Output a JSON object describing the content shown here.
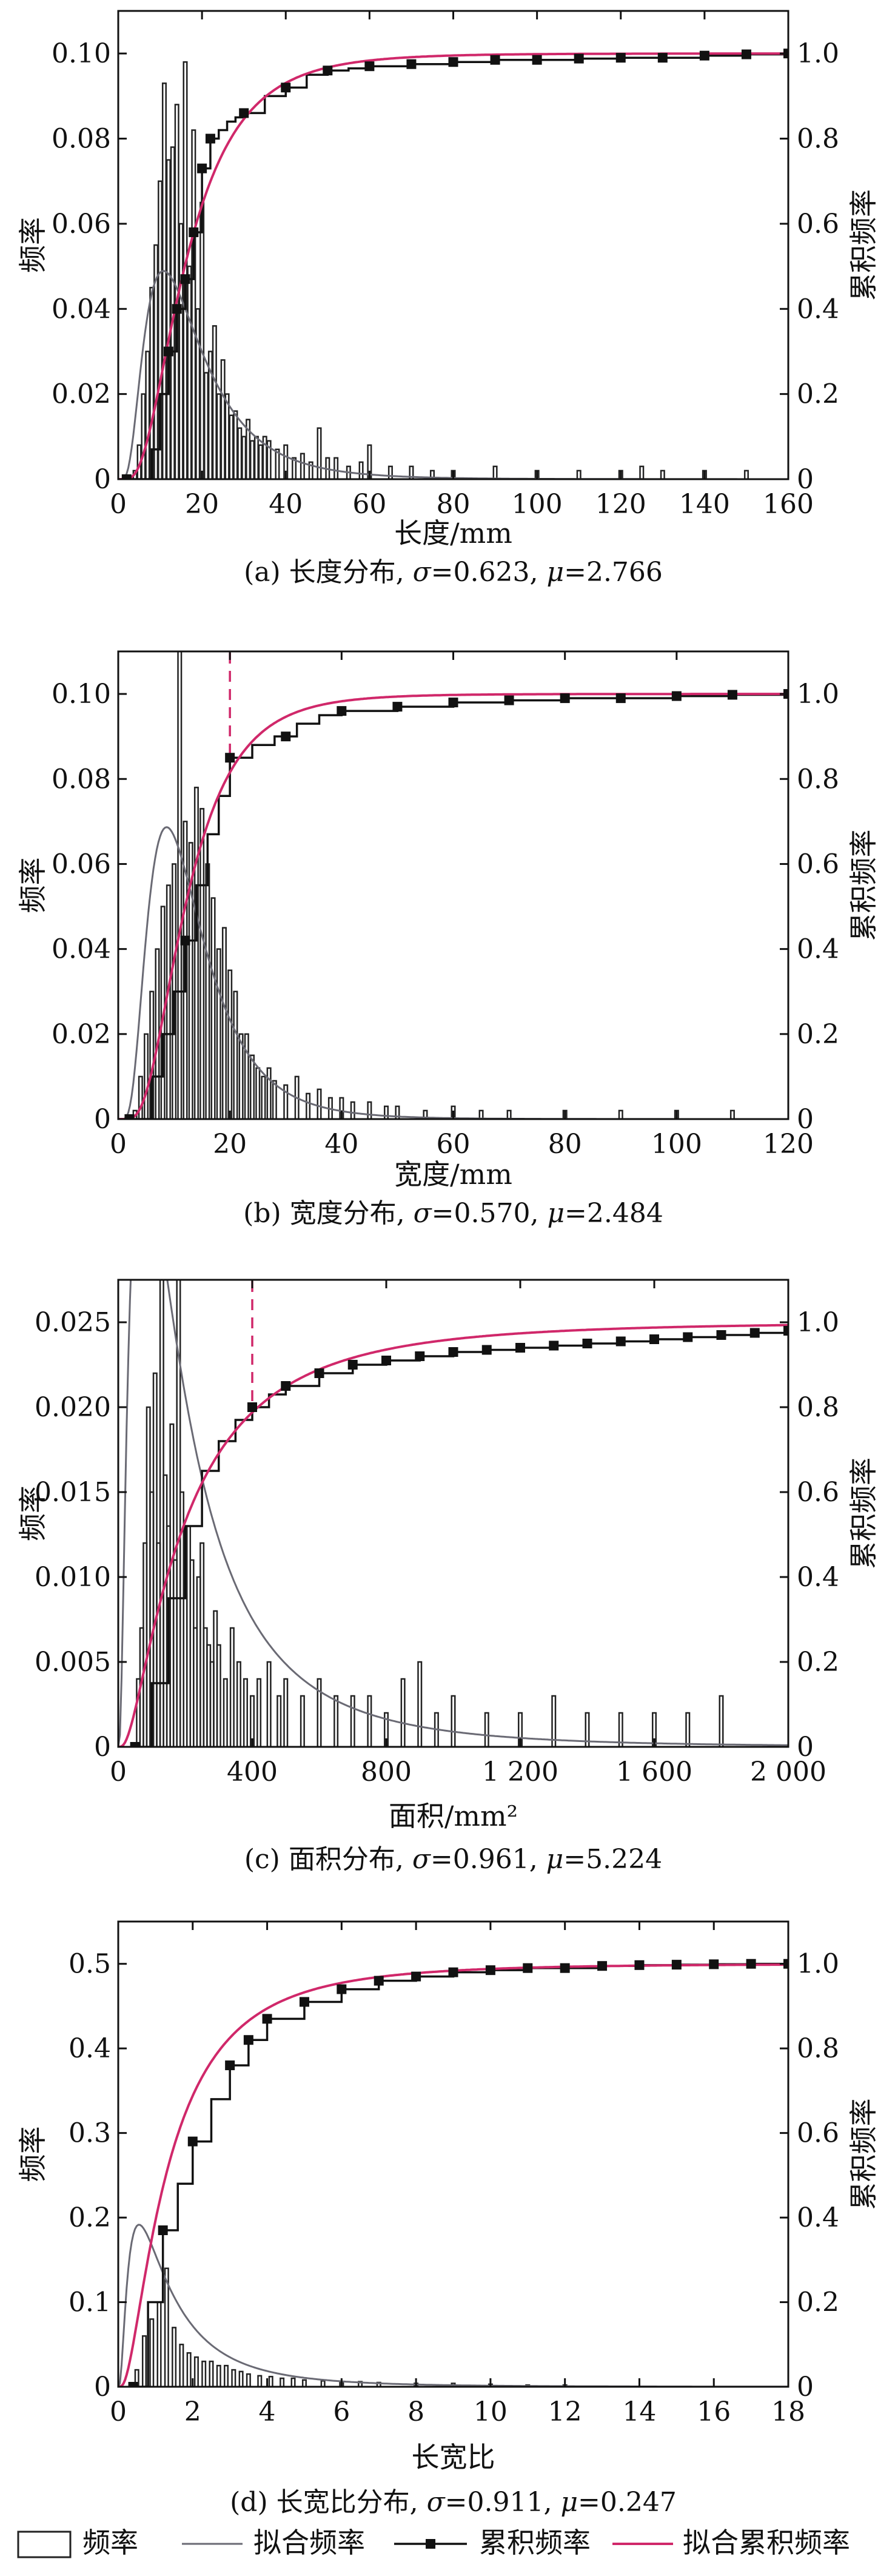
{
  "colors": {
    "axis": "#111111",
    "histogram": "#222222",
    "fitted_frequency": "#6a6a74",
    "cumulative": "#111111",
    "fitted_cumulative": "#d0286a",
    "reference_line": "#d0286a"
  },
  "legend": {
    "frequency": "频率",
    "fitted_frequency": "拟合频率",
    "cumulative": "累积频率",
    "fitted_cumulative": "拟合累积频率"
  },
  "chart_data": [
    {
      "type": "bar",
      "caption_prefix": "(a) 长度分布, ",
      "caption_sigma": "σ",
      "caption_sigma_value": "=0.623, ",
      "caption_mu": "μ",
      "caption_mu_value": "=2.766",
      "xlabel": "长度/mm",
      "ylabel_left": "频率",
      "ylabel_right": "累积频率",
      "xlim": [
        0,
        160
      ],
      "ylim_left": [
        0,
        0.11
      ],
      "ylim_right": [
        0,
        1.1
      ],
      "xticks": [
        0,
        20,
        40,
        60,
        80,
        100,
        120,
        140,
        160
      ],
      "xtick_labels": [
        "0",
        "20",
        "40",
        "60",
        "80",
        "100",
        "120",
        "140",
        "160"
      ],
      "yticks_left": [
        0,
        0.02,
        0.04,
        0.06,
        0.08,
        0.1
      ],
      "ytick_labels_left": [
        "0",
        "0.02",
        "0.04",
        "0.06",
        "0.08",
        "0.10"
      ],
      "yticks_right": [
        0,
        0.2,
        0.4,
        0.6,
        0.8,
        1.0
      ],
      "ytick_labels_right": [
        "0",
        "0.2",
        "0.4",
        "0.6",
        "0.8",
        "1.0"
      ],
      "reference_x": null,
      "lognormal": {
        "sigma": 0.623,
        "mu": 2.766
      },
      "histogram": {
        "x": [
          4,
          5,
          6,
          7,
          8,
          9,
          10,
          11,
          12,
          13,
          14,
          15,
          16,
          17,
          18,
          19,
          20,
          21,
          22,
          23,
          24,
          25,
          26,
          27,
          28,
          29,
          30,
          31,
          32,
          33,
          34,
          35,
          36,
          38,
          40,
          42,
          44,
          46,
          48,
          50,
          52,
          55,
          58,
          60,
          65,
          70,
          75,
          80,
          90,
          100,
          110,
          120,
          125,
          130,
          140,
          150
        ],
        "values": [
          0.002,
          0.008,
          0.02,
          0.03,
          0.045,
          0.055,
          0.07,
          0.093,
          0.075,
          0.078,
          0.088,
          0.06,
          0.098,
          0.05,
          0.082,
          0.04,
          0.065,
          0.025,
          0.03,
          0.036,
          0.02,
          0.028,
          0.02,
          0.015,
          0.016,
          0.012,
          0.01,
          0.014,
          0.009,
          0.01,
          0.008,
          0.01,
          0.009,
          0.007,
          0.008,
          0.005,
          0.006,
          0.004,
          0.012,
          0.005,
          0.005,
          0.003,
          0.004,
          0.008,
          0.003,
          0.003,
          0.002,
          0.002,
          0.003,
          0.002,
          0.002,
          0.002,
          0.003,
          0.002,
          0.002,
          0.002
        ]
      },
      "cumulative": {
        "x": [
          2,
          8,
          10,
          12,
          14,
          16,
          18,
          20,
          22,
          24,
          26,
          28,
          30,
          35,
          40,
          45,
          50,
          55,
          60,
          70,
          80,
          90,
          100,
          110,
          120,
          130,
          140,
          150,
          160
        ],
        "values": [
          0,
          0.07,
          0.2,
          0.3,
          0.4,
          0.47,
          0.58,
          0.73,
          0.8,
          0.82,
          0.84,
          0.85,
          0.86,
          0.9,
          0.92,
          0.95,
          0.96,
          0.965,
          0.97,
          0.975,
          0.98,
          0.985,
          0.985,
          0.988,
          0.99,
          0.99,
          0.995,
          0.998,
          1.0
        ],
        "markers_x": [
          2,
          12,
          14,
          16,
          18,
          20,
          22,
          30,
          40,
          50,
          60,
          70,
          80,
          90,
          100,
          110,
          120,
          130,
          140,
          150,
          160
        ]
      }
    },
    {
      "type": "bar",
      "caption_prefix": "(b) 宽度分布, ",
      "caption_sigma": "σ",
      "caption_sigma_value": "=0.570, ",
      "caption_mu": "μ",
      "caption_mu_value": "=2.484",
      "xlabel": "宽度/mm",
      "ylabel_left": "频率",
      "ylabel_right": "累积频率",
      "xlim": [
        0,
        120
      ],
      "ylim_left": [
        0,
        0.11
      ],
      "ylim_right": [
        0,
        1.1
      ],
      "xticks": [
        0,
        20,
        40,
        60,
        80,
        100,
        120
      ],
      "xtick_labels": [
        "0",
        "20",
        "40",
        "60",
        "80",
        "100",
        "120"
      ],
      "yticks_left": [
        0,
        0.02,
        0.04,
        0.06,
        0.08,
        0.1
      ],
      "ytick_labels_left": [
        "0",
        "0.02",
        "0.04",
        "0.06",
        "0.08",
        "0.10"
      ],
      "yticks_right": [
        0,
        0.2,
        0.4,
        0.6,
        0.8,
        1.0
      ],
      "ytick_labels_right": [
        "0",
        "0.2",
        "0.4",
        "0.6",
        "0.8",
        "1.0"
      ],
      "reference_x": 20,
      "lognormal": {
        "sigma": 0.57,
        "mu": 2.484
      },
      "histogram": {
        "x": [
          3,
          4,
          5,
          6,
          7,
          8,
          9,
          10,
          11,
          12,
          13,
          14,
          15,
          16,
          17,
          18,
          19,
          20,
          21,
          22,
          23,
          24,
          25,
          26,
          27,
          28,
          30,
          32,
          34,
          36,
          38,
          40,
          42,
          45,
          48,
          50,
          55,
          60,
          65,
          70,
          80,
          90,
          100,
          110
        ],
        "values": [
          0.002,
          0.01,
          0.02,
          0.03,
          0.04,
          0.05,
          0.055,
          0.06,
          0.11,
          0.07,
          0.065,
          0.078,
          0.073,
          0.06,
          0.052,
          0.04,
          0.045,
          0.035,
          0.03,
          0.02,
          0.02,
          0.015,
          0.012,
          0.01,
          0.012,
          0.009,
          0.008,
          0.01,
          0.006,
          0.007,
          0.005,
          0.005,
          0.004,
          0.004,
          0.003,
          0.003,
          0.002,
          0.003,
          0.002,
          0.002,
          0.002,
          0.002,
          0.002,
          0.002
        ]
      },
      "cumulative": {
        "x": [
          2,
          6,
          8,
          10,
          12,
          14,
          16,
          18,
          20,
          24,
          28,
          32,
          36,
          40,
          50,
          60,
          70,
          80,
          90,
          100,
          110,
          120
        ],
        "values": [
          0,
          0.1,
          0.2,
          0.3,
          0.42,
          0.55,
          0.67,
          0.76,
          0.85,
          0.88,
          0.9,
          0.93,
          0.95,
          0.96,
          0.97,
          0.98,
          0.985,
          0.99,
          0.99,
          0.995,
          0.998,
          1.0
        ],
        "markers_x": [
          2,
          12,
          20,
          30,
          40,
          50,
          60,
          70,
          80,
          90,
          100,
          110,
          120
        ]
      }
    },
    {
      "type": "bar",
      "caption_prefix": "(c) 面积分布, ",
      "caption_sigma": "σ",
      "caption_sigma_value": "=0.961, ",
      "caption_mu": "μ",
      "caption_mu_value": "=5.224",
      "xlabel": "面积/mm²",
      "ylabel_left": "频率",
      "ylabel_right": "累积频率",
      "xlim": [
        0,
        2000
      ],
      "ylim_left": [
        0,
        0.0275
      ],
      "ylim_right": [
        0,
        1.1
      ],
      "xticks": [
        0,
        400,
        800,
        1200,
        1600,
        2000
      ],
      "xtick_labels": [
        "0",
        "400",
        "800",
        "1 200",
        "1 600",
        "2 000"
      ],
      "yticks_left": [
        0,
        0.005,
        0.01,
        0.015,
        0.02,
        0.025
      ],
      "ytick_labels_left": [
        "0",
        "0.005",
        "0.010",
        "0.015",
        "0.020",
        "0.025"
      ],
      "yticks_right": [
        0,
        0.2,
        0.4,
        0.6,
        0.8,
        1.0
      ],
      "ytick_labels_right": [
        "0",
        "0.2",
        "0.4",
        "0.6",
        "0.8",
        "1.0"
      ],
      "reference_x": 400,
      "lognormal": {
        "sigma": 0.961,
        "mu": 5.224
      },
      "histogram": {
        "x": [
          60,
          70,
          80,
          90,
          100,
          110,
          120,
          130,
          140,
          150,
          160,
          170,
          180,
          190,
          200,
          210,
          220,
          230,
          240,
          250,
          260,
          270,
          280,
          290,
          300,
          320,
          340,
          360,
          380,
          400,
          420,
          450,
          480,
          500,
          550,
          600,
          650,
          700,
          750,
          800,
          850,
          900,
          950,
          1000,
          1100,
          1200,
          1300,
          1400,
          1500,
          1600,
          1700,
          1800
        ],
        "values": [
          0.004,
          0.007,
          0.012,
          0.02,
          0.015,
          0.022,
          0.012,
          0.028,
          0.016,
          0.013,
          0.019,
          0.011,
          0.028,
          0.015,
          0.009,
          0.013,
          0.011,
          0.007,
          0.01,
          0.012,
          0.007,
          0.006,
          0.005,
          0.008,
          0.006,
          0.004,
          0.007,
          0.005,
          0.004,
          0.003,
          0.004,
          0.005,
          0.003,
          0.004,
          0.003,
          0.004,
          0.003,
          0.003,
          0.003,
          0.002,
          0.004,
          0.005,
          0.002,
          0.003,
          0.002,
          0.002,
          0.003,
          0.002,
          0.002,
          0.002,
          0.002,
          0.003
        ]
      },
      "cumulative": {
        "x": [
          50,
          100,
          150,
          200,
          250,
          300,
          350,
          400,
          450,
          500,
          600,
          700,
          800,
          900,
          1000,
          1100,
          1200,
          1300,
          1400,
          1500,
          1600,
          1700,
          1800,
          1900,
          2000
        ],
        "values": [
          0,
          0.15,
          0.35,
          0.52,
          0.65,
          0.72,
          0.77,
          0.8,
          0.83,
          0.85,
          0.88,
          0.9,
          0.91,
          0.92,
          0.93,
          0.935,
          0.94,
          0.945,
          0.95,
          0.955,
          0.96,
          0.965,
          0.97,
          0.975,
          0.98
        ],
        "markers_x": [
          50,
          400,
          500,
          600,
          700,
          800,
          900,
          1000,
          1100,
          1200,
          1300,
          1400,
          1500,
          1600,
          1700,
          1800,
          1900,
          2000
        ]
      }
    },
    {
      "type": "bar",
      "caption_prefix": "(d) 长宽比分布, ",
      "caption_sigma": "σ",
      "caption_sigma_value": "=0.911, ",
      "caption_mu": "μ",
      "caption_mu_value": "=0.247",
      "xlabel": "长宽比",
      "ylabel_left": "频率",
      "ylabel_right": "累积频率",
      "xlim": [
        0,
        18
      ],
      "ylim_left": [
        0,
        0.55
      ],
      "ylim_right": [
        0,
        1.1
      ],
      "xticks": [
        0,
        2,
        4,
        6,
        8,
        10,
        12,
        14,
        16,
        18
      ],
      "xtick_labels": [
        "0",
        "2",
        "4",
        "6",
        "8",
        "10",
        "12",
        "14",
        "16",
        "18"
      ],
      "yticks_left": [
        0,
        0.1,
        0.2,
        0.3,
        0.4,
        0.5
      ],
      "ytick_labels_left": [
        "0",
        "0.1",
        "0.2",
        "0.3",
        "0.4",
        "0.5"
      ],
      "yticks_right": [
        0,
        0.2,
        0.4,
        0.6,
        0.8,
        1.0
      ],
      "ytick_labels_right": [
        "0",
        "0.2",
        "0.4",
        "0.6",
        "0.8",
        "1.0"
      ],
      "reference_x": null,
      "lognormal": {
        "sigma": 0.911,
        "mu": 0.247
      },
      "frequency_curve_scale": 0.37,
      "histogram": {
        "x": [
          0.5,
          0.7,
          0.9,
          1.1,
          1.3,
          1.5,
          1.7,
          1.9,
          2.1,
          2.3,
          2.5,
          2.7,
          2.9,
          3.1,
          3.3,
          3.5,
          3.8,
          4.1,
          4.4,
          4.7,
          5.0,
          5.5,
          6.0,
          6.5,
          7.0,
          8.0,
          9.0,
          10.0,
          11.0,
          12.0
        ],
        "values": [
          0.02,
          0.06,
          0.08,
          0.1,
          0.14,
          0.07,
          0.05,
          0.04,
          0.035,
          0.03,
          0.03,
          0.025,
          0.025,
          0.02,
          0.018,
          0.015,
          0.013,
          0.012,
          0.01,
          0.01,
          0.008,
          0.007,
          0.006,
          0.006,
          0.005,
          0.004,
          0.004,
          0.003,
          0.002,
          0.002
        ]
      },
      "cumulative": {
        "x": [
          0.4,
          0.8,
          1.2,
          1.6,
          2.0,
          2.5,
          3.0,
          3.5,
          4.0,
          5.0,
          6.0,
          7.0,
          8.0,
          9.0,
          10.0,
          11.0,
          12.0,
          13.0,
          14.0,
          15.0,
          16.0,
          17.0,
          18.0
        ],
        "values": [
          0,
          0.2,
          0.37,
          0.48,
          0.58,
          0.68,
          0.76,
          0.82,
          0.87,
          0.91,
          0.94,
          0.96,
          0.97,
          0.98,
          0.985,
          0.99,
          0.99,
          0.995,
          0.997,
          0.998,
          0.999,
          1.0,
          1.0
        ],
        "markers_x": [
          0.4,
          1.2,
          2.0,
          3.0,
          3.5,
          4.0,
          5.0,
          6.0,
          7.0,
          8.0,
          9.0,
          10.0,
          11.0,
          12.0,
          13.0,
          14.0,
          15.0,
          16.0,
          17.0,
          18.0
        ]
      }
    }
  ]
}
